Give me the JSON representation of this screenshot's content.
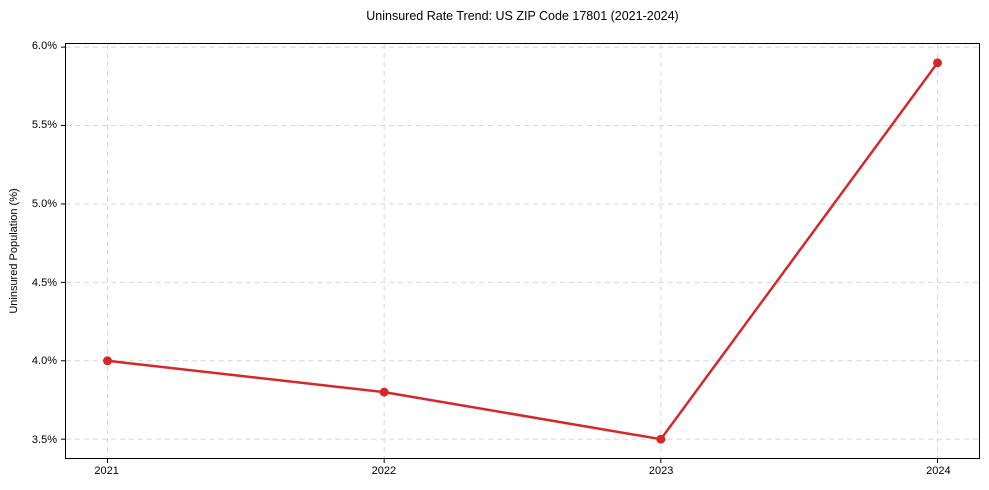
{
  "figure": {
    "background": "#ffffff"
  },
  "chart_data": {
    "type": "line",
    "title": "Uninsured Rate Trend: US ZIP Code 17801 (2021-2024)",
    "xlabel": "",
    "ylabel": "Uninsured Population (%)",
    "categories": [
      "2021",
      "2022",
      "2023",
      "2024"
    ],
    "x": [
      2021,
      2022,
      2023,
      2024
    ],
    "values": [
      4.0,
      3.8,
      3.5,
      5.9
    ],
    "xlim": [
      2020.85,
      2024.15
    ],
    "ylim": [
      3.38,
      6.02
    ],
    "xticks": {
      "values": [
        2021,
        2022,
        2023,
        2024
      ],
      "labels": [
        "2021",
        "2022",
        "2023",
        "2024"
      ]
    },
    "yticks": {
      "values": [
        3.5,
        4.0,
        4.5,
        5.0,
        5.5,
        6.0
      ],
      "labels": [
        "3.5%",
        "4.0%",
        "4.5%",
        "5.0%",
        "5.5%",
        "6.0%"
      ]
    },
    "grid": true,
    "grid_style": "dashed",
    "legend": "none",
    "colors": {
      "line": "#d62728",
      "marker": "#d62728",
      "grid": "#d6d6d6",
      "spine": "#000000",
      "text": "#000000"
    }
  }
}
